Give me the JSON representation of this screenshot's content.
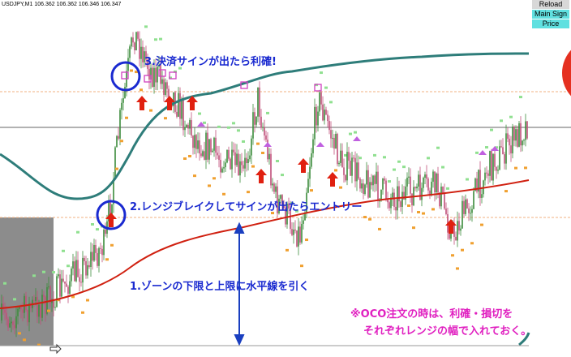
{
  "header": {
    "symbol_line": "USDJPY,M1  106.362 106.362 106.346 106.347"
  },
  "buttons": [
    "Reload",
    "Main Sign",
    "Price"
  ],
  "annotations": {
    "step3": "3.決済サインが出たら利確!",
    "step2": "2.レンジブレイクしてサインが出たらエントリー",
    "step1": "1.ゾーンの下限と上限に水平線を引く",
    "note_line1": "※OCO注文の時は、利確・損切を",
    "note_line2": "それぞれレンジの幅で入れておく。"
  }
}
